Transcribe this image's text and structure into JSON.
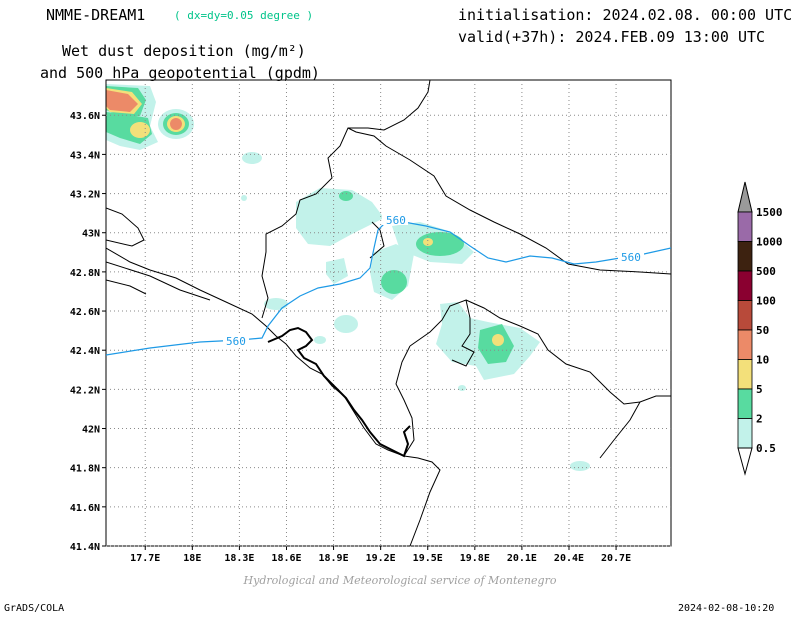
{
  "header": {
    "model": "NMME-DREAM1",
    "resolution": "( dx=dy=0.05 degree )",
    "variable_line1": "Wet dust deposition (mg/m²)",
    "variable_line2": "and 500 hPa geopotential (gpdm)",
    "initialisation": "initialisation: 2024.02.08. 00:00 UTC",
    "valid": "valid(+37h): 2024.FEB.09 13:00 UTC"
  },
  "map": {
    "lon_range": [
      17.45,
      21.05
    ],
    "lat_range": [
      41.4,
      43.78
    ],
    "x_ticks": [
      "17.7E",
      "18E",
      "18.3E",
      "18.6E",
      "18.9E",
      "19.2E",
      "19.5E",
      "19.8E",
      "20.1E",
      "20.4E",
      "20.7E"
    ],
    "x_tick_values": [
      17.7,
      18.0,
      18.3,
      18.6,
      18.9,
      19.2,
      19.5,
      19.8,
      20.1,
      20.4,
      20.7
    ],
    "y_ticks": [
      "41.4N",
      "41.6N",
      "41.8N",
      "42N",
      "42.2N",
      "42.4N",
      "42.6N",
      "42.8N",
      "43N",
      "43.2N",
      "43.4N",
      "43.6N"
    ],
    "y_tick_values": [
      41.4,
      41.6,
      41.8,
      42.0,
      42.2,
      42.4,
      42.6,
      42.8,
      43.0,
      43.2,
      43.4,
      43.6
    ],
    "grid": true,
    "contour_labels": [
      "560",
      "560",
      "560"
    ],
    "contour_color": "#1e9ae6"
  },
  "colorbar": {
    "levels": [
      "1500",
      "1000",
      "500",
      "100",
      "50",
      "10",
      "5",
      "2",
      "0.5"
    ],
    "colors": [
      "#9a6aa8",
      "#3d2210",
      "#8a0030",
      "#b84a3a",
      "#ec8a68",
      "#f3e07a",
      "#58dba0",
      "#c2f2ea"
    ],
    "arrow_top_color": "#9a9a9a"
  },
  "footer": {
    "credit": "Hydrological and Meteorological service of Montenegro",
    "software": "GrADS/COLA",
    "timestamp": "2024-02-08-10:20"
  }
}
